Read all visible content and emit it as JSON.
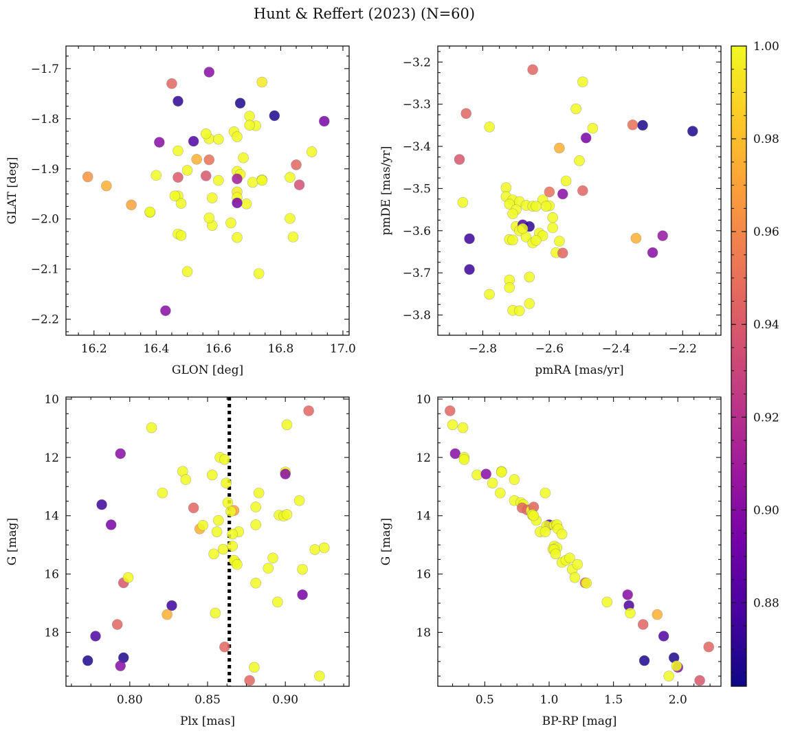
{
  "title": "Hunt & Reffert (2023) (N=60)",
  "colorbar": {
    "range": [
      0.862,
      1.0
    ],
    "ticks": [
      0.88,
      0.9,
      0.92,
      0.94,
      0.96,
      0.98,
      1.0
    ],
    "tick_labels": [
      "0.88",
      "0.90",
      "0.92",
      "0.94",
      "0.96",
      "0.98",
      "1.00"
    ],
    "colormap": [
      "#0d0887",
      "#46039f",
      "#7201a8",
      "#9c179e",
      "#bd3786",
      "#d8576b",
      "#ed7953",
      "#fb9f3a",
      "#fdca26",
      "#f0f921"
    ]
  },
  "vline": {
    "panel": 2,
    "x": 0.864,
    "color": "#000000"
  },
  "chart_data": [
    {
      "type": "scatter",
      "xlabel": "GLON [deg]",
      "ylabel": "GLAT [deg]",
      "xlim": [
        16.11,
        17.02
      ],
      "ylim": [
        -2.232,
        -1.655
      ],
      "y_inverted": false,
      "xticks": [
        16.2,
        16.4,
        16.6,
        16.8,
        17.0
      ],
      "xtick_labels": [
        "16.2",
        "16.4",
        "16.6",
        "16.8",
        "17.0"
      ],
      "yticks": [
        -2.2,
        -2.1,
        -2.0,
        -1.9,
        -1.8,
        -1.7
      ],
      "ytick_labels": [
        "−2.2",
        "−2.1",
        "−2.0",
        "−1.9",
        "−1.8",
        "−1.7"
      ],
      "x": [
        16.57,
        16.45,
        16.47,
        16.67,
        16.74,
        16.78,
        16.94,
        16.7,
        16.72,
        16.41,
        16.52,
        16.57,
        16.6,
        16.65,
        16.66,
        16.7,
        16.47,
        16.53,
        16.57,
        16.9,
        16.5,
        16.66,
        16.67,
        16.56,
        16.4,
        16.47,
        16.6,
        16.66,
        16.71,
        16.74,
        16.83,
        16.85,
        16.86,
        16.18,
        16.24,
        16.47,
        16.66,
        16.58,
        16.66,
        16.32,
        16.38,
        16.48,
        16.69,
        16.38,
        16.58,
        16.64,
        16.57,
        16.47,
        16.48,
        16.66,
        16.84,
        16.83,
        16.5,
        16.73,
        16.43,
        16.68,
        16.74,
        16.66,
        16.46,
        16.56
      ],
      "y": [
        -1.707,
        -1.73,
        -1.765,
        -1.769,
        -1.727,
        -1.794,
        -1.805,
        -1.795,
        -1.814,
        -1.847,
        -1.845,
        -1.84,
        -1.841,
        -1.826,
        -1.836,
        -1.813,
        -1.864,
        -1.881,
        -1.882,
        -1.866,
        -1.903,
        -1.905,
        -1.911,
        -1.914,
        -1.913,
        -1.917,
        -1.923,
        -1.92,
        -1.927,
        -1.922,
        -1.917,
        -1.892,
        -1.932,
        -1.916,
        -1.934,
        -1.954,
        -1.946,
        -1.958,
        -1.957,
        -1.972,
        -1.987,
        -1.969,
        -1.97,
        -1.986,
        -2.013,
        -2.008,
        -1.998,
        -2.03,
        -2.033,
        -2.037,
        -2.036,
        -1.999,
        -2.105,
        -2.109,
        -2.183,
        -1.878,
        -1.923,
        -1.968,
        -1.954,
        -1.83
      ],
      "c": [
        0.9,
        0.945,
        0.87,
        0.866,
        0.995,
        0.866,
        0.895,
        1.0,
        1.0,
        0.9,
        0.88,
        1.0,
        1.0,
        1.0,
        1.0,
        1.0,
        1.0,
        0.975,
        0.95,
        1.0,
        1.0,
        1.0,
        1.0,
        0.938,
        1.0,
        0.94,
        1.0,
        0.91,
        1.0,
        1.0,
        1.0,
        0.945,
        0.935,
        0.965,
        0.975,
        1.0,
        0.995,
        1.0,
        1.0,
        0.97,
        1.0,
        1.0,
        1.0,
        1.0,
        1.0,
        1.0,
        1.0,
        1.0,
        1.0,
        1.0,
        1.0,
        1.0,
        1.0,
        1.0,
        0.9,
        1.0,
        1.0,
        0.895,
        1.0,
        1.0
      ]
    },
    {
      "type": "scatter",
      "xlabel": "pmRA [mas/yr]",
      "ylabel": "pmDE [mas/yr]",
      "xlim": [
        -2.935,
        -2.085
      ],
      "ylim": [
        -3.848,
        -3.162
      ],
      "y_inverted": false,
      "xticks": [
        -2.8,
        -2.6,
        -2.4,
        -2.2
      ],
      "xtick_labels": [
        "−2.8",
        "−2.6",
        "−2.4",
        "−2.2"
      ],
      "yticks": [
        -3.8,
        -3.7,
        -3.6,
        -3.5,
        -3.4,
        -3.3,
        -3.2
      ],
      "ytick_labels": [
        "−3.8",
        "−3.7",
        "−3.6",
        "−3.5",
        "−3.4",
        "−3.3",
        "−3.2"
      ],
      "x": [
        -2.65,
        -2.5,
        -2.52,
        -2.85,
        -2.35,
        -2.32,
        -2.17,
        -2.78,
        -2.47,
        -2.57,
        -2.49,
        -2.87,
        -2.51,
        -2.73,
        -2.55,
        -2.6,
        -2.5,
        -2.86,
        -2.73,
        -2.71,
        -2.72,
        -2.69,
        -2.67,
        -2.7,
        -2.65,
        -2.62,
        -2.64,
        -2.6,
        -2.71,
        -2.7,
        -2.68,
        -2.66,
        -2.63,
        -2.59,
        -2.59,
        -2.72,
        -2.71,
        -2.69,
        -2.67,
        -2.65,
        -2.62,
        -2.57,
        -2.84,
        -2.26,
        -2.34,
        -2.58,
        -2.56,
        -2.29,
        -2.84,
        -2.66,
        -2.78,
        -2.72,
        -2.72,
        -2.66,
        -2.71,
        -2.69,
        -2.68,
        -2.64,
        -2.56,
        -2.61
      ],
      "y": [
        -3.218,
        -3.247,
        -3.311,
        -3.322,
        -3.349,
        -3.35,
        -3.364,
        -3.354,
        -3.357,
        -3.404,
        -3.38,
        -3.431,
        -3.434,
        -3.498,
        -3.482,
        -3.508,
        -3.505,
        -3.533,
        -3.519,
        -3.527,
        -3.537,
        -3.531,
        -3.54,
        -3.55,
        -3.542,
        -3.527,
        -3.542,
        -3.541,
        -3.56,
        -3.59,
        -3.586,
        -3.59,
        -3.606,
        -3.569,
        -3.593,
        -3.621,
        -3.622,
        -3.6,
        -3.615,
        -3.629,
        -3.612,
        -3.625,
        -3.619,
        -3.612,
        -3.618,
        -3.652,
        -3.653,
        -3.652,
        -3.692,
        -3.71,
        -3.751,
        -3.717,
        -3.735,
        -3.773,
        -3.789,
        -3.79,
        -3.595,
        -3.623,
        -3.513,
        -3.542
      ],
      "c": [
        0.945,
        1.0,
        1.0,
        0.945,
        0.95,
        0.866,
        0.866,
        1.0,
        1.0,
        0.975,
        0.895,
        0.938,
        1.0,
        1.0,
        1.0,
        0.95,
        0.945,
        1.0,
        1.0,
        1.0,
        1.0,
        1.0,
        1.0,
        1.0,
        1.0,
        1.0,
        1.0,
        1.0,
        1.0,
        1.0,
        0.88,
        0.87,
        1.0,
        1.0,
        1.0,
        1.0,
        1.0,
        1.0,
        1.0,
        1.0,
        1.0,
        1.0,
        0.875,
        0.905,
        0.975,
        1.0,
        0.945,
        0.9,
        0.875,
        1.0,
        1.0,
        1.0,
        1.0,
        1.0,
        1.0,
        1.0,
        1.0,
        1.0,
        0.9,
        1.0
      ]
    },
    {
      "type": "scatter",
      "xlabel": "Plx [mas]",
      "ylabel": "G [mag]",
      "xlim": [
        0.759,
        0.941
      ],
      "ylim": [
        19.85,
        9.93
      ],
      "y_inverted": true,
      "xticks": [
        0.8,
        0.85,
        0.9
      ],
      "xtick_labels": [
        "0.80",
        "0.85",
        "0.90"
      ],
      "yticks": [
        10,
        12,
        14,
        16,
        18
      ],
      "ytick_labels": [
        "10",
        "12",
        "14",
        "16",
        "18"
      ],
      "x": [
        0.915,
        0.814,
        0.901,
        0.858,
        0.861,
        0.794,
        0.834,
        0.836,
        0.853,
        0.9,
        0.821,
        0.862,
        0.883,
        0.909,
        0.863,
        0.841,
        0.867,
        0.881,
        0.857,
        0.896,
        0.899,
        0.901,
        0.845,
        0.782,
        0.856,
        0.847,
        0.788,
        0.881,
        0.86,
        0.87,
        0.866,
        0.866,
        0.854,
        0.868,
        0.867,
        0.869,
        0.919,
        0.925,
        0.911,
        0.892,
        0.889,
        0.796,
        0.799,
        0.881,
        0.895,
        0.911,
        0.827,
        0.855,
        0.824,
        0.792,
        0.778,
        0.773,
        0.796,
        0.861,
        0.794,
        0.88,
        0.877,
        0.922,
        0.865,
        0.9
      ],
      "y": [
        10.4,
        10.98,
        10.88,
        12.0,
        12.07,
        11.87,
        12.48,
        12.76,
        12.6,
        12.5,
        13.22,
        12.88,
        13.22,
        13.48,
        13.55,
        13.73,
        13.82,
        13.7,
        14.16,
        13.98,
        14.01,
        13.96,
        14.45,
        13.62,
        14.55,
        14.33,
        14.31,
        14.31,
        15.15,
        14.55,
        14.63,
        15.04,
        15.31,
        15.6,
        15.53,
        15.67,
        15.16,
        15.1,
        15.84,
        15.45,
        15.8,
        16.3,
        16.12,
        16.31,
        16.96,
        16.71,
        17.08,
        17.34,
        17.39,
        17.73,
        18.13,
        18.97,
        18.87,
        18.5,
        19.15,
        19.2,
        19.65,
        19.5,
        13.85,
        12.57
      ],
      "c": [
        0.945,
        1.0,
        1.0,
        1.0,
        1.0,
        0.9,
        1.0,
        1.0,
        1.0,
        1.0,
        1.0,
        1.0,
        1.0,
        1.0,
        1.0,
        0.945,
        0.97,
        1.0,
        1.0,
        1.0,
        1.0,
        1.0,
        0.975,
        0.875,
        1.0,
        1.0,
        0.895,
        1.0,
        1.0,
        1.0,
        1.0,
        1.0,
        1.0,
        1.0,
        1.0,
        1.0,
        1.0,
        1.0,
        1.0,
        1.0,
        1.0,
        0.938,
        1.0,
        1.0,
        1.0,
        0.895,
        0.875,
        1.0,
        0.975,
        0.945,
        0.88,
        0.866,
        0.866,
        0.945,
        0.9,
        1.0,
        0.945,
        1.0,
        1.0,
        0.9
      ]
    },
    {
      "type": "scatter",
      "xlabel": "BP-RP [mag]",
      "ylabel": "G [mag]",
      "xlim": [
        0.135,
        2.335
      ],
      "ylim": [
        19.85,
        9.93
      ],
      "y_inverted": true,
      "xticks": [
        0.5,
        1.0,
        1.5,
        2.0
      ],
      "xtick_labels": [
        "0.5",
        "1.0",
        "1.5",
        "2.0"
      ],
      "yticks": [
        10,
        12,
        14,
        16,
        18
      ],
      "ytick_labels": [
        "10",
        "12",
        "14",
        "16",
        "18"
      ],
      "x": [
        0.23,
        0.25,
        0.33,
        0.27,
        0.34,
        0.34,
        0.44,
        0.51,
        0.56,
        0.63,
        0.62,
        0.73,
        0.63,
        0.73,
        0.78,
        0.8,
        0.79,
        0.83,
        0.86,
        0.88,
        0.87,
        0.9,
        0.87,
        1.0,
        0.98,
        1.04,
        1.06,
        1.07,
        0.93,
        0.97,
        1.04,
        1.06,
        1.1,
        1.03,
        1.04,
        1.05,
        1.1,
        1.13,
        1.16,
        1.18,
        1.22,
        1.2,
        1.28,
        1.29,
        1.45,
        1.61,
        1.62,
        1.63,
        1.73,
        1.74,
        1.84,
        1.89,
        1.93,
        1.97,
        2.0,
        1.99,
        2.17,
        2.24,
        0.88,
        0.97
      ],
      "y": [
        10.4,
        10.88,
        10.98,
        11.87,
        12.0,
        12.07,
        12.6,
        12.57,
        12.88,
        12.48,
        13.22,
        12.76,
        12.5,
        13.48,
        13.55,
        13.62,
        13.73,
        13.8,
        13.82,
        13.7,
        13.98,
        14.16,
        13.96,
        14.31,
        14.35,
        14.33,
        14.31,
        14.45,
        14.55,
        14.55,
        15.04,
        15.1,
        14.63,
        15.15,
        15.16,
        15.31,
        15.6,
        15.53,
        15.45,
        15.84,
        15.67,
        16.12,
        16.3,
        16.31,
        16.96,
        16.71,
        17.08,
        17.34,
        17.73,
        18.97,
        17.39,
        18.13,
        19.5,
        18.87,
        19.2,
        19.15,
        19.65,
        18.5,
        14.0,
        13.22
      ],
      "c": [
        0.945,
        1.0,
        1.0,
        0.9,
        1.0,
        1.0,
        1.0,
        0.9,
        1.0,
        1.0,
        1.0,
        1.0,
        1.0,
        1.0,
        1.0,
        1.0,
        0.945,
        0.945,
        1.0,
        0.945,
        1.0,
        1.0,
        1.0,
        0.88,
        1.0,
        1.0,
        1.0,
        1.0,
        1.0,
        1.0,
        1.0,
        1.0,
        1.0,
        1.0,
        1.0,
        1.0,
        1.0,
        1.0,
        1.0,
        1.0,
        1.0,
        1.0,
        0.945,
        1.0,
        1.0,
        0.9,
        0.88,
        1.0,
        0.945,
        0.866,
        0.975,
        0.88,
        1.0,
        0.866,
        0.9,
        1.0,
        0.938,
        0.945,
        1.0,
        1.0
      ]
    }
  ]
}
